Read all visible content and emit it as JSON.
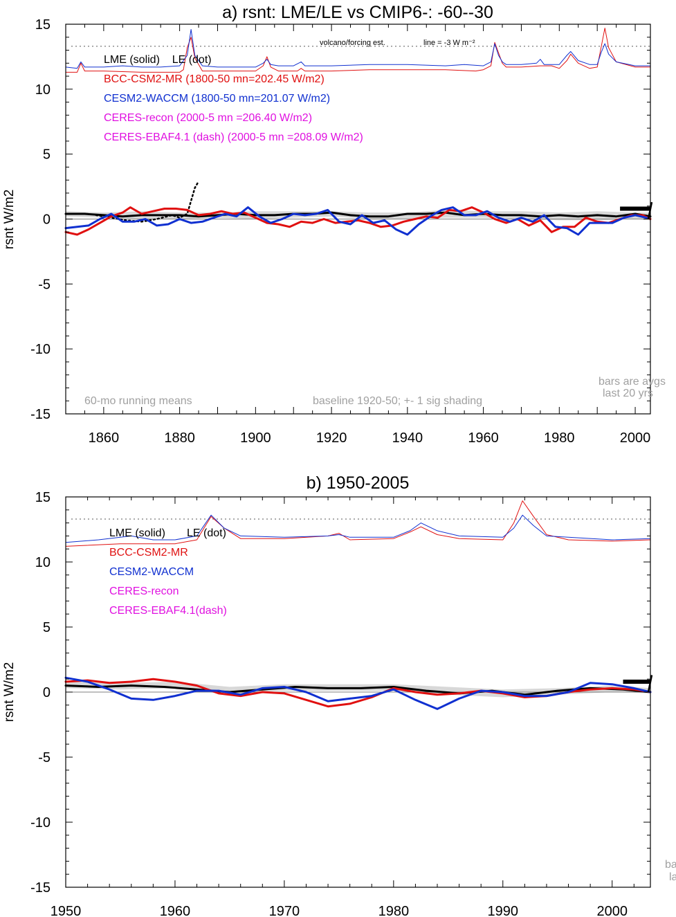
{
  "colors": {
    "lme": "#000000",
    "bcc": "#e01010",
    "cesm": "#1030d0",
    "ceres": "#e010e0",
    "shade": "#d8d8d8",
    "gray_text": "#a0a0a0",
    "grid_zero": "#808080"
  },
  "chart_data": [
    {
      "type": "line",
      "title": "a) rsnt: LME/LE vs CMIP6-: -60--30",
      "ylabel": "rsnt W/m2",
      "xlim": [
        1850,
        2004
      ],
      "ylim": [
        -15,
        15
      ],
      "xticks": [
        1860,
        1880,
        1900,
        1920,
        1940,
        1960,
        1980,
        2000
      ],
      "yticks": [
        -15,
        -10,
        -5,
        0,
        5,
        10,
        15
      ],
      "legend": [
        {
          "text": "LME (solid)    LE (dot)",
          "color": "#000000"
        },
        {
          "text": "BCC-CSM2-MR (1800-50 mn=202.45 W/m2)",
          "color": "#e01010"
        },
        {
          "text": "CESM2-WACCM (1800-50 mn=201.07 W/m2)",
          "color": "#1030d0"
        },
        {
          "text": "CERES-recon (2000-5 mn =206.40 W/m2)",
          "color": "#e010e0"
        },
        {
          "text": "CERES-EBAF4.1 (dash) (2000-5 mn =208.09 W/m2)",
          "color": "#e010e0"
        }
      ],
      "annotations": {
        "volcano": "volcano/forcing est.",
        "scale": "line = -3 W m⁻²",
        "running": "60-mo running means",
        "baseline": "baseline 1920-50; +- 1 sig shading",
        "bars1": "bars are avgs",
        "bars2": "last 20 yrs"
      },
      "reference_line": 13.3,
      "series": [
        {
          "name": "LME (solid)",
          "color": "#000000",
          "width": 3,
          "x": [
            1850,
            1855,
            1860,
            1865,
            1870,
            1875,
            1880,
            1885,
            1890,
            1895,
            1900,
            1905,
            1910,
            1915,
            1920,
            1925,
            1930,
            1935,
            1940,
            1945,
            1950,
            1955,
            1960,
            1965,
            1970,
            1975,
            1980,
            1985,
            1990,
            1995,
            2000,
            2004
          ],
          "y": [
            0.4,
            0.4,
            0.3,
            0.2,
            0.3,
            0.3,
            0.3,
            0.2,
            0.3,
            0.4,
            0.3,
            0.3,
            0.4,
            0.4,
            0.5,
            0.3,
            0.2,
            0.2,
            0.4,
            0.4,
            0.5,
            0.3,
            0.4,
            0.3,
            0.3,
            0.2,
            0.3,
            0.2,
            0.3,
            0.2,
            0.4,
            0.2
          ]
        },
        {
          "name": "LE (dot)",
          "color": "#000000",
          "width": 2.5,
          "dash": "2,4",
          "x": [
            1858,
            1862,
            1866,
            1870,
            1874,
            1878,
            1880,
            1882,
            1884,
            1885
          ],
          "y": [
            0.3,
            0.1,
            -0.1,
            -0.2,
            0.0,
            0.3,
            0.1,
            0.4,
            2.4,
            2.9
          ]
        },
        {
          "name": "BCC-CSM2-MR",
          "color": "#e01010",
          "width": 3,
          "x": [
            1850,
            1853,
            1856,
            1859,
            1862,
            1865,
            1867,
            1870,
            1873,
            1876,
            1879,
            1882,
            1885,
            1888,
            1891,
            1894,
            1897,
            1900,
            1903,
            1906,
            1909,
            1912,
            1915,
            1918,
            1921,
            1924,
            1927,
            1930,
            1933,
            1936,
            1939,
            1942,
            1945,
            1948,
            1951,
            1954,
            1957,
            1960,
            1963,
            1966,
            1969,
            1972,
            1975,
            1978,
            1981,
            1984,
            1987,
            1990,
            1993,
            1996,
            1999,
            2002,
            2004
          ],
          "y": [
            -1.0,
            -1.2,
            -0.8,
            -0.3,
            0.2,
            0.5,
            0.9,
            0.4,
            0.6,
            0.8,
            0.8,
            0.7,
            0.3,
            0.4,
            0.6,
            0.4,
            0.5,
            0.1,
            -0.3,
            -0.4,
            -0.6,
            -0.2,
            -0.3,
            0.0,
            -0.3,
            -0.2,
            -0.1,
            -0.3,
            -0.6,
            -0.5,
            -0.2,
            0.0,
            0.2,
            0.1,
            0.7,
            0.6,
            0.9,
            0.5,
            0.0,
            -0.3,
            0.0,
            -0.5,
            -0.1,
            -1.0,
            -0.6,
            -0.6,
            0.1,
            -0.2,
            -0.3,
            0.0,
            0.3,
            0.3,
            0.0
          ]
        },
        {
          "name": "CESM2-WACCM",
          "color": "#1030d0",
          "width": 3,
          "x": [
            1850,
            1853,
            1856,
            1859,
            1862,
            1865,
            1868,
            1871,
            1874,
            1877,
            1880,
            1883,
            1886,
            1889,
            1892,
            1895,
            1898,
            1901,
            1904,
            1907,
            1910,
            1913,
            1916,
            1919,
            1922,
            1925,
            1928,
            1931,
            1934,
            1937,
            1940,
            1943,
            1946,
            1949,
            1952,
            1955,
            1958,
            1961,
            1964,
            1967,
            1970,
            1973,
            1976,
            1979,
            1982,
            1985,
            1988,
            1991,
            1994,
            1997,
            2000,
            2003
          ],
          "y": [
            -0.7,
            -0.6,
            -0.5,
            0.0,
            0.4,
            -0.2,
            -0.2,
            0.0,
            -0.5,
            -0.4,
            0.0,
            -0.3,
            -0.2,
            0.1,
            0.4,
            0.2,
            0.9,
            0.2,
            -0.3,
            0.0,
            0.4,
            0.3,
            0.4,
            0.7,
            -0.2,
            -0.4,
            0.3,
            -0.3,
            -0.1,
            -0.8,
            -1.2,
            -0.4,
            0.2,
            0.7,
            0.9,
            0.3,
            0.3,
            0.6,
            0.1,
            -0.2,
            0.1,
            -0.2,
            0.3,
            -0.6,
            -0.7,
            -1.2,
            -0.3,
            -0.3,
            -0.3,
            0.1,
            0.3,
            0.1
          ]
        },
        {
          "name": "volcano/forcing est. BCC",
          "color": "#e01010",
          "width": 1,
          "x": [
            1850,
            1853,
            1854,
            1855,
            1856,
            1860,
            1870,
            1880,
            1881,
            1882,
            1883,
            1884,
            1886,
            1890,
            1900,
            1902,
            1903,
            1904,
            1906,
            1911,
            1912,
            1913,
            1920,
            1930,
            1940,
            1950,
            1958,
            1960,
            1962,
            1963,
            1964,
            1965,
            1966,
            1970,
            1975,
            1978,
            1980,
            1982,
            1983,
            1985,
            1988,
            1990,
            1991,
            1992,
            1993,
            1995,
            2000,
            2004
          ],
          "y": [
            11.3,
            11.3,
            12.0,
            11.4,
            11.4,
            11.4,
            11.3,
            11.3,
            11.5,
            13.2,
            14.0,
            12.4,
            11.4,
            11.4,
            11.4,
            11.8,
            12.5,
            11.7,
            11.4,
            11.4,
            11.6,
            11.4,
            11.4,
            11.5,
            11.5,
            11.5,
            11.4,
            11.5,
            11.8,
            13.6,
            12.8,
            12.0,
            11.7,
            11.7,
            11.8,
            11.8,
            11.6,
            12.2,
            12.7,
            12.0,
            11.6,
            11.7,
            13.2,
            14.7,
            13.2,
            12.1,
            11.7,
            11.7
          ]
        },
        {
          "name": "volcano/forcing est. CESM",
          "color": "#1030d0",
          "width": 1,
          "x": [
            1850,
            1853,
            1854,
            1855,
            1856,
            1860,
            1865,
            1870,
            1875,
            1880,
            1882,
            1883,
            1884,
            1886,
            1890,
            1900,
            1902,
            1903,
            1904,
            1906,
            1910,
            1912,
            1913,
            1920,
            1930,
            1940,
            1950,
            1955,
            1960,
            1962,
            1963,
            1964,
            1965,
            1966,
            1970,
            1974,
            1975,
            1976,
            1980,
            1982,
            1983,
            1985,
            1988,
            1990,
            1991,
            1992,
            1993,
            1995,
            2000,
            2004
          ],
          "y": [
            11.7,
            11.6,
            12.1,
            11.7,
            11.7,
            11.7,
            11.8,
            11.7,
            11.7,
            11.8,
            12.6,
            14.6,
            12.6,
            11.8,
            11.7,
            11.7,
            12.0,
            12.3,
            11.9,
            11.8,
            11.8,
            12.1,
            11.8,
            11.8,
            11.9,
            11.9,
            11.8,
            11.9,
            11.8,
            12.1,
            13.5,
            12.6,
            12.1,
            11.9,
            11.9,
            12.0,
            12.3,
            11.9,
            11.9,
            12.6,
            12.9,
            12.2,
            11.9,
            11.9,
            12.8,
            13.5,
            12.7,
            12.1,
            11.8,
            11.8
          ]
        }
      ],
      "shade_band": {
        "x": [
          1850,
          1860,
          1870,
          1880,
          1890,
          1900,
          1910,
          1920,
          1930,
          1940,
          1950,
          1960,
          1970,
          1980,
          1990,
          2000,
          2004
        ],
        "upper": [
          0.6,
          0.5,
          0.6,
          0.5,
          0.5,
          0.6,
          0.6,
          0.6,
          0.5,
          0.5,
          0.7,
          0.6,
          0.6,
          0.5,
          0.6,
          0.5,
          0.5
        ],
        "lower": [
          0.2,
          0.1,
          0.0,
          0.0,
          0.1,
          0.0,
          0.1,
          0.2,
          0.0,
          0.0,
          0.1,
          0.1,
          0.0,
          -0.1,
          -0.1,
          0.0,
          -0.1
        ]
      },
      "bar": {
        "x0": 1996,
        "x1": 2004,
        "y": 0.8
      }
    },
    {
      "type": "line",
      "title": "b) 1950-2005",
      "ylabel": "rsnt W/m2",
      "xlim": [
        1950,
        2003.5
      ],
      "ylim": [
        -15,
        15
      ],
      "xticks": [
        1950,
        1960,
        1970,
        1980,
        1990,
        2000
      ],
      "yticks": [
        -15,
        -10,
        -5,
        0,
        5,
        10,
        15
      ],
      "legend": [
        {
          "text": "LME (solid)       LE (dot)",
          "color": "#000000"
        },
        {
          "text": "BCC-CSM2-MR",
          "color": "#e01010"
        },
        {
          "text": "CESM2-WACCM",
          "color": "#1030d0"
        },
        {
          "text": "CERES-recon",
          "color": "#e010e0"
        },
        {
          "text": "CERES-EBAF4.1(dash)",
          "color": "#e010e0"
        }
      ],
      "annotations": {
        "bars1": "ba",
        "bars2": "la"
      },
      "reference_line": 13.3,
      "series": [
        {
          "name": "LME (solid)",
          "color": "#000000",
          "width": 3,
          "x": [
            1950,
            1953,
            1956,
            1959,
            1962,
            1965,
            1968,
            1971,
            1974,
            1977,
            1980,
            1983,
            1986,
            1989,
            1992,
            1995,
            1998,
            2001,
            2003.5
          ],
          "y": [
            0.5,
            0.4,
            0.5,
            0.4,
            0.2,
            0.0,
            0.2,
            0.4,
            0.3,
            0.3,
            0.4,
            0.1,
            -0.1,
            0.1,
            -0.2,
            0.1,
            0.3,
            0.2,
            0.0
          ]
        },
        {
          "name": "BCC-CSM2-MR",
          "color": "#e01010",
          "width": 3,
          "x": [
            1950,
            1952,
            1954,
            1956,
            1958,
            1960,
            1962,
            1964,
            1966,
            1968,
            1970,
            1972,
            1974,
            1976,
            1978,
            1980,
            1982,
            1984,
            1986,
            1988,
            1990,
            1992,
            1994,
            1996,
            1998,
            2000,
            2002,
            2003.5
          ],
          "y": [
            0.8,
            0.9,
            0.7,
            0.8,
            1.0,
            0.8,
            0.5,
            -0.1,
            -0.3,
            0.0,
            -0.1,
            -0.6,
            -1.1,
            -0.9,
            -0.4,
            0.3,
            0.0,
            -0.2,
            -0.1,
            0.1,
            -0.1,
            -0.4,
            -0.3,
            0.0,
            0.2,
            0.3,
            0.2,
            0.0
          ]
        },
        {
          "name": "CESM2-WACCM",
          "color": "#1030d0",
          "width": 3,
          "x": [
            1950,
            1952,
            1954,
            1956,
            1958,
            1960,
            1962,
            1964,
            1966,
            1968,
            1970,
            1972,
            1974,
            1976,
            1978,
            1980,
            1982,
            1984,
            1986,
            1988,
            1990,
            1992,
            1994,
            1996,
            1998,
            2000,
            2002,
            2003.5
          ],
          "y": [
            1.1,
            0.8,
            0.2,
            -0.5,
            -0.6,
            -0.3,
            0.1,
            0.1,
            -0.2,
            0.3,
            0.4,
            0.0,
            -0.7,
            -0.5,
            -0.3,
            0.2,
            -0.6,
            -1.3,
            -0.5,
            0.1,
            0.0,
            -0.3,
            -0.3,
            0.0,
            0.7,
            0.6,
            0.3,
            0.0
          ]
        },
        {
          "name": "volcano/forcing est. BCC",
          "color": "#e01010",
          "width": 1,
          "x": [
            1950,
            1955,
            1960,
            1962,
            1963.3,
            1964.5,
            1966,
            1970,
            1974,
            1975,
            1976,
            1980,
            1981.5,
            1982.5,
            1984,
            1986,
            1990,
            1991,
            1991.8,
            1992.8,
            1994,
            1996,
            2000,
            2003.5
          ],
          "y": [
            11.2,
            11.4,
            11.4,
            11.7,
            13.5,
            12.6,
            11.8,
            11.8,
            12.0,
            12.2,
            11.7,
            11.8,
            12.3,
            12.7,
            12.1,
            11.8,
            11.7,
            13.0,
            14.7,
            13.5,
            12.1,
            11.7,
            11.6,
            11.7
          ]
        },
        {
          "name": "volcano/forcing est. CESM",
          "color": "#1030d0",
          "width": 1,
          "x": [
            1950,
            1953,
            1956,
            1958,
            1960,
            1962,
            1963.3,
            1964.5,
            1966,
            1970,
            1974,
            1975,
            1976,
            1980,
            1981.5,
            1982.5,
            1984,
            1986,
            1990,
            1991,
            1991.8,
            1992.8,
            1994,
            1996,
            2000,
            2003.5
          ],
          "y": [
            11.5,
            11.7,
            12.0,
            11.7,
            11.7,
            12.0,
            13.6,
            12.6,
            12.0,
            11.9,
            12.0,
            12.1,
            11.9,
            11.9,
            12.4,
            13.0,
            12.4,
            12.0,
            11.9,
            12.6,
            13.6,
            12.8,
            12.0,
            11.9,
            11.7,
            11.8
          ]
        }
      ],
      "shade_band": {
        "x": [
          1950,
          1955,
          1960,
          1965,
          1970,
          1975,
          1980,
          1985,
          1990,
          1995,
          2000,
          2003.5
        ],
        "upper": [
          0.8,
          0.7,
          0.8,
          0.4,
          0.6,
          0.6,
          0.6,
          0.4,
          0.2,
          0.3,
          0.5,
          0.3
        ],
        "lower": [
          0.3,
          0.2,
          0.3,
          -0.2,
          0.1,
          0.1,
          0.1,
          -0.2,
          -0.4,
          -0.2,
          0.0,
          -0.1
        ]
      },
      "bar": {
        "x0": 2001,
        "x1": 2003.5,
        "y": 0.8
      }
    }
  ]
}
